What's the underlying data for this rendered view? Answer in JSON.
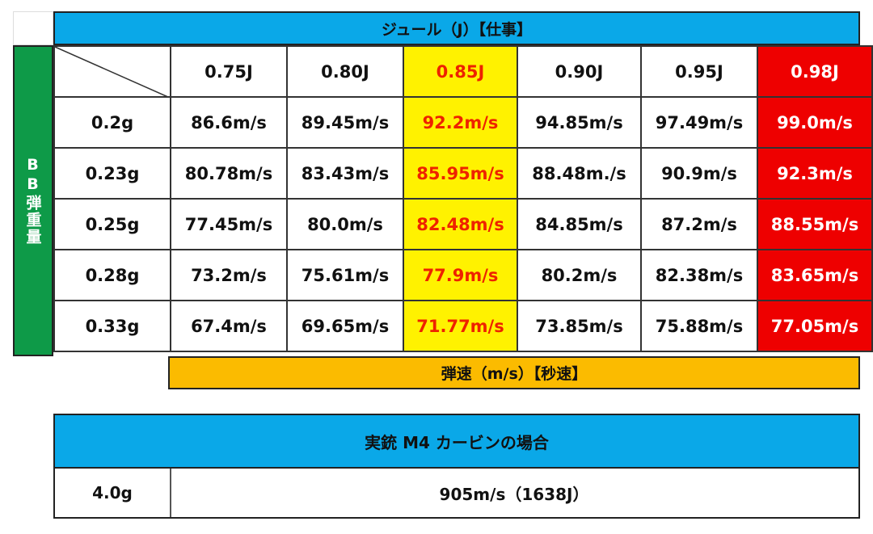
{
  "header": {
    "joule_title": "ジュール（J）【仕事】",
    "side_label": "BB弾重量",
    "speed_title": "弾速（m/s）【秒速】"
  },
  "colors": {
    "header_blue": "#0aa8e8",
    "side_green": "#0e9a48",
    "highlight_yellow": "#fff200",
    "highlight_red": "#ee0000",
    "speed_orange": "#fbbb00"
  },
  "chart_data": {
    "type": "table",
    "title": "ジュール（J）【仕事】",
    "row_header_label": "BB弾重量",
    "footer_label": "弾速（m/s）【秒速】",
    "columns": [
      "0.75J",
      "0.80J",
      "0.85J",
      "0.90J",
      "0.95J",
      "0.98J"
    ],
    "highlighted_columns": {
      "0.85J": "yellow",
      "0.98J": "red"
    },
    "rows": [
      {
        "label": "0.2g",
        "values": [
          "86.6m/s",
          "89.45m/s",
          "92.2m/s",
          "94.85m/s",
          "97.49m/s",
          "99.0m/s"
        ]
      },
      {
        "label": "0.23g",
        "values": [
          "80.78m/s",
          "83.43m/s",
          "85.95m/s",
          "88.48m./s",
          "90.9m/s",
          "92.3m/s"
        ]
      },
      {
        "label": "0.25g",
        "values": [
          "77.45m/s",
          "80.0m/s",
          "82.48m/s",
          "84.85m/s",
          "87.2m/s",
          "88.55m/s"
        ]
      },
      {
        "label": "0.28g",
        "values": [
          "73.2m/s",
          "75.61m/s",
          "77.9m/s",
          "80.2m/s",
          "82.38m/s",
          "83.65m/s"
        ]
      },
      {
        "label": "0.33g",
        "values": [
          "67.4m/s",
          "69.65m/s",
          "71.77m/s",
          "73.85m/s",
          "75.88m/s",
          "77.05m/s"
        ]
      }
    ]
  },
  "m4": {
    "title": "実銃 M4 カービンの場合",
    "label": "4.0g",
    "value": "905m/s（1638J）"
  }
}
